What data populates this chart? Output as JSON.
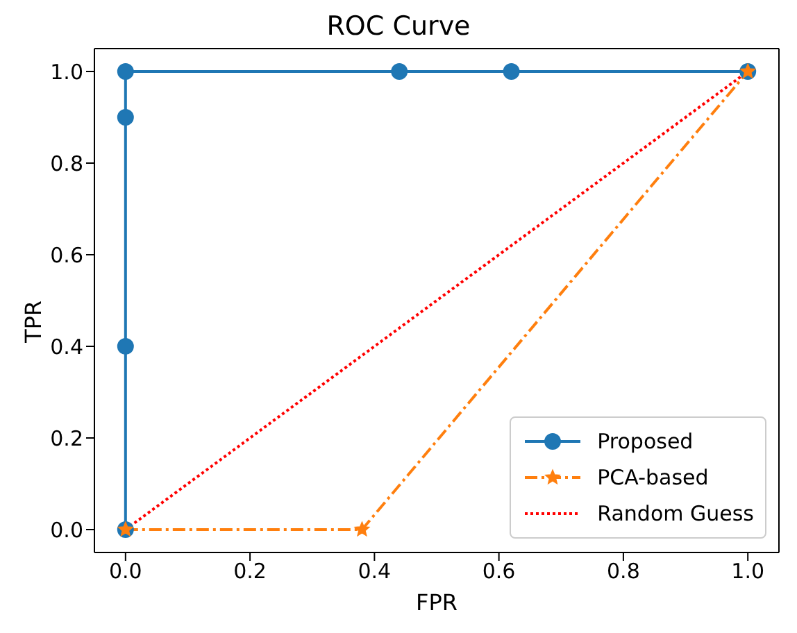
{
  "chart_data": {
    "type": "line",
    "title": "ROC Curve",
    "xlabel": "FPR",
    "ylabel": "TPR",
    "xlim": [
      -0.05,
      1.05
    ],
    "ylim": [
      -0.05,
      1.05
    ],
    "xticks": [
      {
        "value": 0,
        "label": "0.0"
      },
      0.2,
      0.4,
      0.6,
      0.8,
      {
        "value": 1,
        "label": "1.0"
      }
    ],
    "yticks": [
      {
        "value": 0,
        "label": "0.0"
      },
      0.2,
      0.4,
      0.6,
      0.8,
      {
        "value": 1,
        "label": "1.0"
      }
    ],
    "legend": "bottom right",
    "series": [
      {
        "name": "Proposed",
        "color": "#1f77b4",
        "x": [
          0,
          0,
          0,
          0,
          0.44,
          0.62,
          1
        ],
        "values": [
          0,
          0.4,
          0.9,
          1,
          1,
          1,
          1
        ],
        "marker": "circle",
        "line_style": "solid"
      },
      {
        "name": "PCA-based",
        "color": "#ff7f0e",
        "x": [
          0,
          0.38,
          1
        ],
        "values": [
          0,
          0,
          1
        ],
        "marker": "star",
        "line_style": "dashed"
      },
      {
        "name": "Random Guess",
        "color": "#ff0000",
        "x": [
          0,
          1
        ],
        "values": [
          0,
          1
        ],
        "marker": "none",
        "line_style": "dotted"
      }
    ]
  }
}
